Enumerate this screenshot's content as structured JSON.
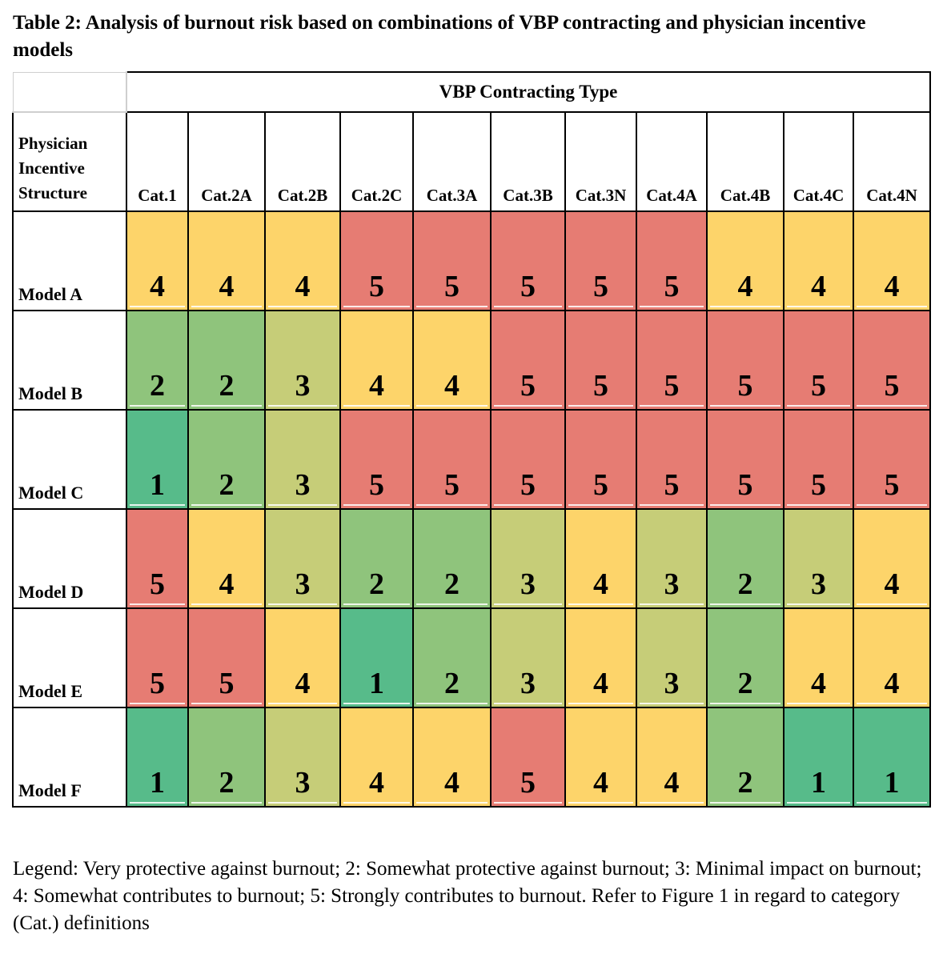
{
  "caption": "Table 2: Analysis of burnout risk based on combinations of VBP contracting and physician incentive models",
  "table": {
    "group_header": "VBP Contracting Type",
    "row_header_lines": [
      "Physician",
      "Incentive",
      "Structure"
    ],
    "columns": [
      "Cat.1",
      "Cat.2A",
      "Cat.2B",
      "Cat.2C",
      "Cat.3A",
      "Cat.3B",
      "Cat.3N",
      "Cat.4A",
      "Cat.4B",
      "Cat.4C",
      "Cat.4N"
    ],
    "rows": [
      {
        "label": "Model A",
        "values": [
          4,
          4,
          4,
          5,
          5,
          5,
          5,
          5,
          4,
          4,
          4
        ]
      },
      {
        "label": "Model B",
        "values": [
          2,
          2,
          3,
          4,
          4,
          5,
          5,
          5,
          5,
          5,
          5
        ]
      },
      {
        "label": "Model C",
        "values": [
          1,
          2,
          3,
          5,
          5,
          5,
          5,
          5,
          5,
          5,
          5
        ]
      },
      {
        "label": "Model D",
        "values": [
          5,
          4,
          3,
          2,
          2,
          3,
          4,
          3,
          2,
          3,
          4
        ]
      },
      {
        "label": "Model E",
        "values": [
          5,
          5,
          4,
          1,
          2,
          3,
          4,
          3,
          2,
          4,
          4
        ]
      },
      {
        "label": "Model F",
        "values": [
          1,
          2,
          3,
          4,
          4,
          5,
          4,
          4,
          2,
          1,
          1
        ]
      }
    ],
    "score_colors": {
      "1": "#57bb8a",
      "2": "#8fc47c",
      "3": "#c6cd78",
      "4": "#fdd46a",
      "5": "#e67c73"
    }
  },
  "legend": "Legend: Very protective against burnout; 2: Somewhat protective against burnout; 3: Minimal impact on burnout; 4: Somewhat contributes to burnout; 5: Strongly contributes to burnout. Refer to Figure 1 in regard to category (Cat.) definitions"
}
